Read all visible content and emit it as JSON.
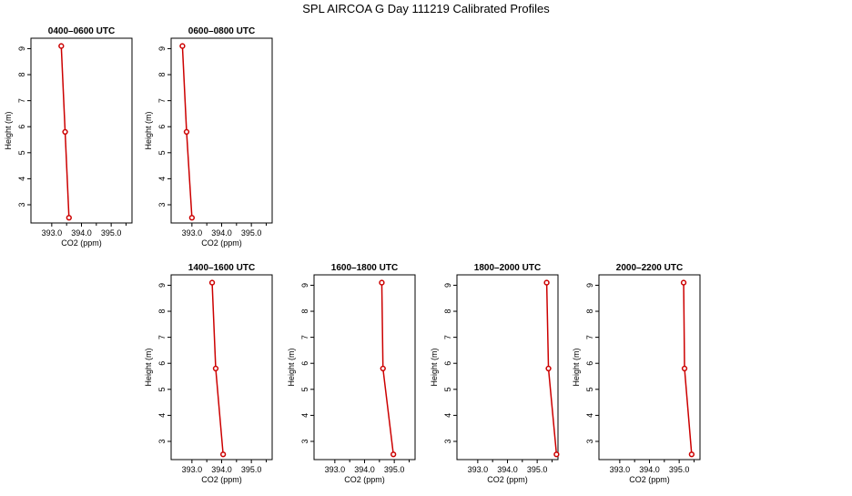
{
  "figure": {
    "title": "SPL AIRCOA G  Day 111219  Calibrated Profiles"
  },
  "chart_data": [
    {
      "type": "line",
      "title": "0400–0600 UTC",
      "xlabel": "CO2 (ppm)",
      "ylabel": "Height (m)",
      "xlim": [
        392.3,
        395.7
      ],
      "ylim": [
        2.3,
        9.4
      ],
      "xticks": [
        "393.0",
        "394.0",
        "395.0"
      ],
      "yticks": [
        "3",
        "4",
        "5",
        "6",
        "7",
        "8",
        "9"
      ],
      "series": [
        {
          "color": "#cc0000",
          "x": [
            393.32,
            393.45,
            393.58
          ],
          "y": [
            9.1,
            5.8,
            2.5
          ]
        }
      ]
    },
    {
      "type": "line",
      "title": "0600–0800 UTC",
      "xlabel": "CO2 (ppm)",
      "ylabel": "Height (m)",
      "xlim": [
        392.3,
        395.7
      ],
      "ylim": [
        2.3,
        9.4
      ],
      "xticks": [
        "393.0",
        "394.0",
        "395.0"
      ],
      "yticks": [
        "3",
        "4",
        "5",
        "6",
        "7",
        "8",
        "9"
      ],
      "series": [
        {
          "color": "#cc0000",
          "x": [
            392.68,
            392.82,
            393.0
          ],
          "y": [
            9.1,
            5.8,
            2.5
          ]
        }
      ]
    },
    {
      "type": "line",
      "title": "1400–1600 UTC",
      "xlabel": "CO2 (ppm)",
      "ylabel": "Height (m)",
      "xlim": [
        392.3,
        395.7
      ],
      "ylim": [
        2.3,
        9.4
      ],
      "xticks": [
        "393.0",
        "394.0",
        "395.0"
      ],
      "yticks": [
        "3",
        "4",
        "5",
        "6",
        "7",
        "8",
        "9"
      ],
      "series": [
        {
          "color": "#cc0000",
          "x": [
            393.68,
            393.8,
            394.05
          ],
          "y": [
            9.1,
            5.8,
            2.5
          ]
        }
      ]
    },
    {
      "type": "line",
      "title": "1600–1800 UTC",
      "xlabel": "CO2 (ppm)",
      "ylabel": "Height (m)",
      "xlim": [
        392.3,
        395.7
      ],
      "ylim": [
        2.3,
        9.4
      ],
      "xticks": [
        "393.0",
        "394.0",
        "395.0"
      ],
      "yticks": [
        "3",
        "4",
        "5",
        "6",
        "7",
        "8",
        "9"
      ],
      "series": [
        {
          "color": "#cc0000",
          "x": [
            394.58,
            394.62,
            394.97
          ],
          "y": [
            9.1,
            5.8,
            2.5
          ]
        }
      ]
    },
    {
      "type": "line",
      "title": "1800–2000 UTC",
      "xlabel": "CO2 (ppm)",
      "ylabel": "Height (m)",
      "xlim": [
        392.3,
        395.7
      ],
      "ylim": [
        2.3,
        9.4
      ],
      "xticks": [
        "393.0",
        "394.0",
        "395.0"
      ],
      "yticks": [
        "3",
        "4",
        "5",
        "6",
        "7",
        "8",
        "9"
      ],
      "series": [
        {
          "color": "#cc0000",
          "x": [
            395.32,
            395.38,
            395.65
          ],
          "y": [
            9.1,
            5.8,
            2.5
          ]
        }
      ]
    },
    {
      "type": "line",
      "title": "2000–2200 UTC",
      "xlabel": "CO2 (ppm)",
      "ylabel": "Height (m)",
      "xlim": [
        392.3,
        395.7
      ],
      "ylim": [
        2.3,
        9.4
      ],
      "xticks": [
        "393.0",
        "394.0",
        "395.0"
      ],
      "yticks": [
        "3",
        "4",
        "5",
        "6",
        "7",
        "8",
        "9"
      ],
      "series": [
        {
          "color": "#cc0000",
          "x": [
            395.15,
            395.18,
            395.42
          ],
          "y": [
            9.1,
            5.8,
            2.5
          ]
        }
      ]
    }
  ]
}
